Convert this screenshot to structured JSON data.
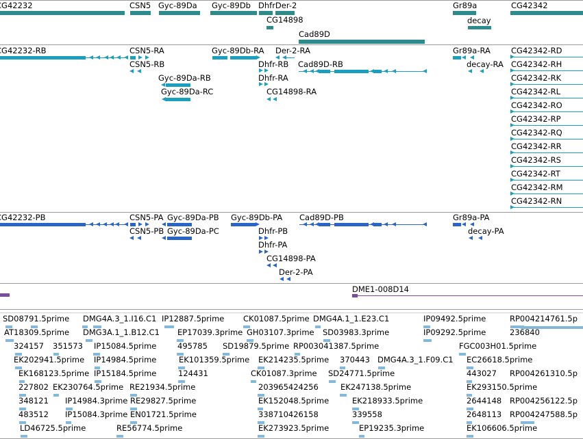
{
  "colors": {
    "gene": "#2e8b8b",
    "transcript": "#1a9fbf",
    "protein": "#2a64c8",
    "clone": "#7a4aa0",
    "est": "#82b8dc"
  },
  "tracks": {
    "genes": [
      "CG42232",
      "CSN5",
      "Gyc-89Da",
      "Gyc-89Db",
      "DhfrDer-2",
      "CG14898",
      "Cad89D",
      "Gr89a",
      "decay",
      "CG42342"
    ],
    "transcripts": [
      "CG42232-RB",
      "CSN5-RA",
      "CSN5-RB",
      "Gyc-89Da-RB",
      "Gyc-89Da-RC",
      "Gyc-89Db-RA",
      "Dhfr-RB",
      "Dhfr-RA",
      "CG14898-RA",
      "Der-2-RA",
      "Cad89D-RB",
      "Gr89a-RA",
      "decay-RA",
      "CG42342-RD",
      "CG42342-RH",
      "CG42342-RK",
      "CG42342-RL",
      "CG42342-RO",
      "CG42342-RP",
      "CG42342-RQ",
      "CG42342-RR",
      "CG42342-RS",
      "CG42342-RT",
      "CG42342-RM",
      "CG42342-RN"
    ],
    "proteins": [
      "CG42232-PB",
      "CSN5-PA",
      "CSN5-PB",
      "Gyc-89Da-PB",
      "Gyc-89Da-PC",
      "Gyc-89Db-PA",
      "Dhfr-PB",
      "Dhfr-PA",
      "CG14898-PA",
      "Der-2-PA",
      "Cad89D-PB",
      "Gr89a-PA",
      "decay-PA"
    ],
    "clones": [
      "DME1-008D14"
    ],
    "ests": [
      "SD08791.5prime",
      "DMG4A.3_1.I16.C1",
      "IP12887.5prime",
      "CK01087.5prime",
      "DMG4A.1_1.E23.C1",
      "IP09492.5prime",
      "RP004214761.5p",
      "AT18309.5prime",
      "DMG3A.1_1.B12.C1",
      "EP17039.3prime",
      "GH03107.3prime",
      "SD03983.3prime",
      "IP09292.5prime",
      "236840",
      "324157",
      "351573",
      "IP15084.5prime",
      "495785",
      "SD19879.5prime",
      "RP003041387.5prime",
      "FGC003H01.5prime",
      "EK202941.5prime",
      "IP14984.5prime",
      "EK101359.5prime",
      "EK214235.5prime",
      "370443",
      "DMG4A.3_1.F09.C1",
      "EC26618.5prime",
      "EK168123.5prime",
      "IP15184.5prime",
      "124431",
      "CK01087.3prime",
      "SD24771.5prime",
      "443027",
      "RP004261310.5p",
      "227802",
      "EK230764.5prime",
      "RE21934.5prime",
      "203965424256",
      "EK247138.5prime",
      "EK293150.5prime",
      "348121",
      "IP14984.3prime",
      "RE29827.5prime",
      "EK152048.5prime",
      "EK218933.5prime",
      "2644148",
      "RP004256122.5p",
      "483512",
      "IP15084.3prime",
      "EN01721.5prime",
      "338710426158",
      "339558",
      "2648113",
      "RP004247588.5p",
      "LD46725.5prime",
      "RE56774.5prime",
      "EK273923.5prime",
      "EP19235.3prime",
      "EK106606.5prime"
    ]
  }
}
